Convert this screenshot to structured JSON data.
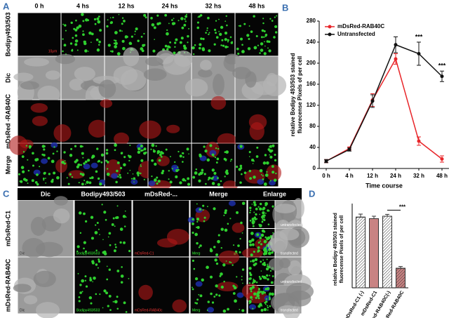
{
  "panel_labels": [
    "A",
    "B",
    "C",
    "D"
  ],
  "panel_a": {
    "columns": [
      "0 h",
      "4 hs",
      "12 hs",
      "24 hs",
      "32 hs",
      "48 hs"
    ],
    "rows": [
      "Bodipy493/503",
      "Dic",
      "mDsRed -RAB40C",
      "Merge"
    ],
    "scale_label": "10μm"
  },
  "panel_c": {
    "columns": [
      "Dic",
      "Bodipy493/503",
      "mDsRed-...",
      "Merge",
      "Enlarge"
    ],
    "rows": [
      "mDsRed-C1",
      "mDsRed-RAB40C"
    ],
    "image_labels": [
      [
        "Dic",
        "Bodipy493/503",
        "mDsRed-C1",
        "Merg"
      ],
      [
        "Dic",
        "Bodipy493/503",
        "mDsRed-RAB40c",
        "Merg"
      ]
    ],
    "enlarge_labels": [
      [
        "untransfected",
        "transfected"
      ],
      [
        "untransfected",
        "transfected"
      ]
    ]
  },
  "chart_data": [
    {
      "type": "line",
      "ylabel": [
        "relative Bodipy 493/503  stained",
        "fluorecense Pixels of per cell"
      ],
      "xlabel": "Time course",
      "categories": [
        "0 h",
        "4 h",
        "12 h",
        "24 h",
        "32 h",
        "48 h"
      ],
      "series": [
        {
          "name": "mDsRed-RAB40C",
          "color": "#e8262a",
          "values": [
            14,
            38,
            130,
            208,
            52,
            18
          ],
          "errors": [
            3,
            3,
            12,
            10,
            8,
            6
          ]
        },
        {
          "name": "Untransfected",
          "color": "#111111",
          "values": [
            14,
            36,
            128,
            235,
            218,
            175
          ],
          "errors": [
            3,
            3,
            12,
            15,
            22,
            10
          ]
        }
      ],
      "ylim": [
        0,
        280
      ],
      "yticks": [
        0,
        40,
        80,
        120,
        160,
        200,
        240,
        280
      ],
      "legend": "upper-left",
      "annotations": [
        {
          "text": "***",
          "x": "32 h"
        },
        {
          "text": "***",
          "x": "48 h"
        }
      ]
    },
    {
      "type": "bar",
      "ylabel": [
        "relative Bodipy 493/503 stained",
        "fluorecense Pixels of per cell"
      ],
      "categories": [
        "mDsRed-C1 (-)",
        "mDsRed-C1",
        "mDsRed-RAB40C(-)",
        "mDsRed-RAB40C"
      ],
      "values": [
        235,
        230,
        238,
        65
      ],
      "errors": [
        10,
        8,
        6,
        6
      ],
      "colors": [
        "#ffffff",
        "#c98383",
        "#ffffff",
        "#c98383"
      ],
      "hatch": [
        true,
        false,
        true,
        true
      ],
      "ylim": [
        0,
        280
      ],
      "annotations": [
        {
          "text": "***"
        }
      ]
    }
  ]
}
